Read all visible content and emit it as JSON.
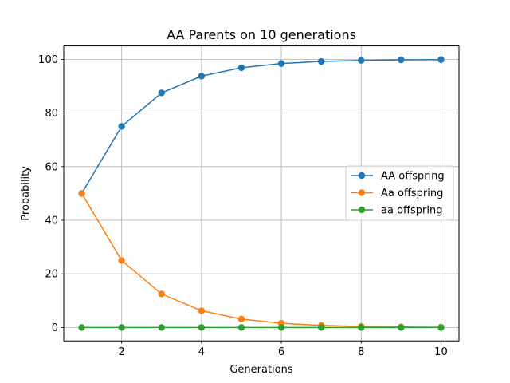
{
  "chart_data": {
    "type": "line",
    "title": "AA Parents on 10 generations",
    "xlabel": "Generations",
    "ylabel": "Probability",
    "x": [
      1,
      2,
      3,
      4,
      5,
      6,
      7,
      8,
      9,
      10
    ],
    "xlim": [
      0.55,
      10.45
    ],
    "ylim": [
      -5,
      105
    ],
    "xticks": [
      2,
      4,
      6,
      8,
      10
    ],
    "yticks": [
      0,
      20,
      40,
      60,
      80,
      100
    ],
    "grid": true,
    "legend_position": "center-right",
    "series": [
      {
        "name": "AA offspring",
        "color": "#1f77b4",
        "values": [
          50,
          75,
          87.5,
          93.75,
          96.875,
          98.4375,
          99.21875,
          99.609375,
          99.8046875,
          99.90234375
        ]
      },
      {
        "name": "Aa offspring",
        "color": "#ff7f0e",
        "values": [
          50,
          25,
          12.5,
          6.25,
          3.125,
          1.5625,
          0.78125,
          0.390625,
          0.1953125,
          0.09765625
        ]
      },
      {
        "name": "aa offspring",
        "color": "#2ca02c",
        "values": [
          0,
          0,
          0,
          0,
          0,
          0,
          0,
          0,
          0,
          0
        ]
      }
    ]
  }
}
